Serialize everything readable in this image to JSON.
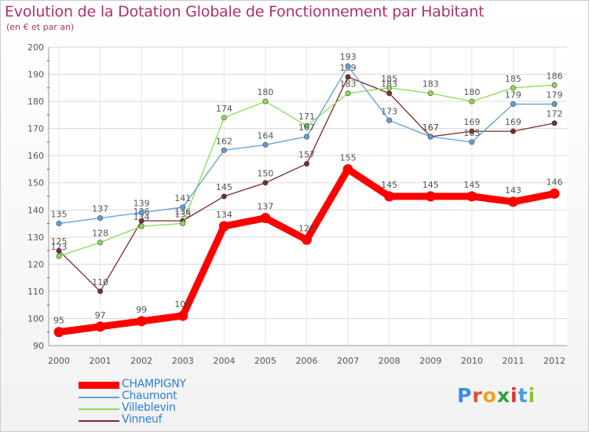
{
  "header": {
    "title": "Evolution de la Dotation Globale de Fonctionnement par Habitant",
    "subtitle": "(en € et par an)"
  },
  "brand": {
    "text": "Proxiti",
    "letter_colors": [
      "#3a8ee0",
      "#e05030",
      "#f0a020",
      "#30a040",
      "#e03030",
      "#40a0e0",
      "#90c030"
    ]
  },
  "chart_data": {
    "type": "line",
    "title": "Evolution de la Dotation Globale de Fonctionnement par Habitant",
    "subtitle": "(en € et par an)",
    "x": [
      "2000",
      "2001",
      "2002",
      "2003",
      "2004",
      "2005",
      "2006",
      "2007",
      "2008",
      "2009",
      "2010",
      "2011",
      "2012"
    ],
    "ylim": [
      90,
      200
    ],
    "yticks": [
      90,
      100,
      110,
      120,
      130,
      140,
      150,
      160,
      170,
      180,
      190,
      200
    ],
    "grid": true,
    "legend_position": "bottom-left",
    "series": [
      {
        "name": "CHAMPIGNY",
        "color": "#ff0000",
        "emphasis": true,
        "values": [
          95,
          97,
          99,
          101,
          134,
          137,
          129,
          155,
          145,
          145,
          145,
          143,
          146
        ]
      },
      {
        "name": "Chaumont",
        "color": "#5f9fd8",
        "values": [
          135,
          137,
          139,
          141,
          162,
          164,
          167,
          193,
          173,
          167,
          165,
          179,
          179
        ]
      },
      {
        "name": "Villeblevin",
        "color": "#88dd55",
        "values": [
          123,
          128,
          134,
          135,
          174,
          180,
          171,
          183,
          185,
          183,
          180,
          185,
          186
        ]
      },
      {
        "name": "Vinneuf",
        "color": "#7a2a2a",
        "values": [
          125,
          110,
          136,
          136,
          145,
          150,
          157,
          189,
          183,
          167,
          169,
          169,
          172
        ]
      }
    ]
  }
}
